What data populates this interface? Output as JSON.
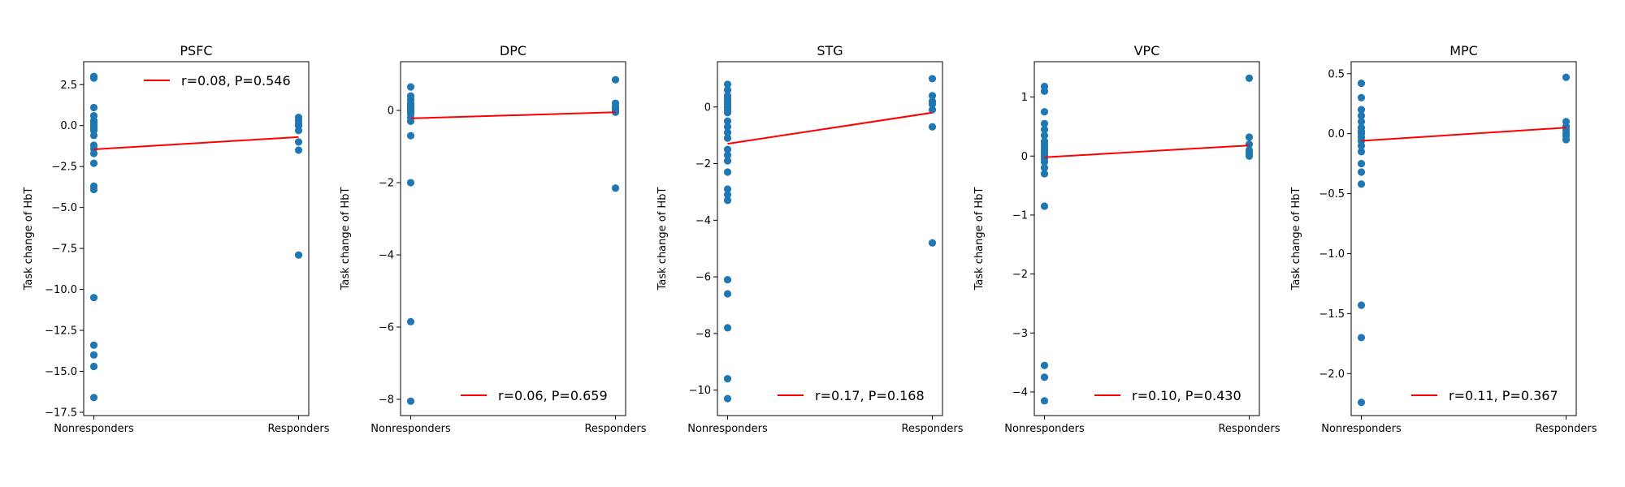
{
  "colors": {
    "points": "#1f77b4",
    "fit_line": "#ff0000",
    "axes": "#000000"
  },
  "chart_data": [
    {
      "type": "scatter",
      "title": "PSFC",
      "xlabel": "",
      "ylabel": "Task change of HbT",
      "categories": [
        "Nonresponders",
        "Responders"
      ],
      "ylim": [
        -17.7,
        3.9
      ],
      "yticks": [
        2.5,
        0.0,
        -2.5,
        -5.0,
        -7.5,
        -10.0,
        -12.5,
        -15.0,
        -17.5
      ],
      "ytick_labels": [
        "2.5",
        "0.0",
        "−2.5",
        "−5.0",
        "−7.5",
        "−10.0",
        "−12.5",
        "−15.0",
        "−17.5"
      ],
      "legend": {
        "label": "r=0.08, P=0.546",
        "position": "upper right"
      },
      "fit_line": {
        "y_start": -1.45,
        "y_end": -0.7
      },
      "series": [
        {
          "category": "Nonresponders",
          "values": [
            3.0,
            2.9,
            1.1,
            0.6,
            0.3,
            0.2,
            0.1,
            0.0,
            -0.1,
            -0.2,
            -0.3,
            -0.6,
            -1.2,
            -1.4,
            -1.7,
            -2.3,
            -3.7,
            -3.9,
            -10.5,
            -13.4,
            -14.0,
            -14.7,
            -16.6
          ]
        },
        {
          "category": "Responders",
          "values": [
            0.5,
            0.3,
            0.1,
            0.0,
            -0.3,
            -1.0,
            -1.5,
            -7.9
          ]
        }
      ]
    },
    {
      "type": "scatter",
      "title": "DPC",
      "xlabel": "",
      "ylabel": "Task change of HbT",
      "categories": [
        "Nonresponders",
        "Responders"
      ],
      "ylim": [
        -8.45,
        1.35
      ],
      "yticks": [
        0,
        -2,
        -4,
        -6,
        -8
      ],
      "ytick_labels": [
        "0",
        "−2",
        "−4",
        "−6",
        "−8"
      ],
      "legend": {
        "label": "r=0.06, P=0.659",
        "position": "lower right"
      },
      "fit_line": {
        "y_start": -0.22,
        "y_end": -0.05
      },
      "series": [
        {
          "category": "Nonresponders",
          "values": [
            0.65,
            0.4,
            0.3,
            0.2,
            0.15,
            0.1,
            0.05,
            0.0,
            -0.05,
            -0.1,
            -0.2,
            -0.3,
            -0.7,
            -2.0,
            -5.85,
            -8.05
          ]
        },
        {
          "category": "Responders",
          "values": [
            0.85,
            0.2,
            0.1,
            0.05,
            0.0,
            -0.05,
            -2.15
          ]
        }
      ]
    },
    {
      "type": "scatter",
      "title": "STG",
      "xlabel": "",
      "ylabel": "Task change of HbT",
      "categories": [
        "Nonresponders",
        "Responders"
      ],
      "ylim": [
        -10.9,
        1.6
      ],
      "yticks": [
        0,
        -2,
        -4,
        -6,
        -8,
        -10
      ],
      "ytick_labels": [
        "0",
        "−2",
        "−4",
        "−6",
        "−8",
        "−10"
      ],
      "legend": {
        "label": "r=0.17, P=0.168",
        "position": "lower right"
      },
      "fit_line": {
        "y_start": -1.3,
        "y_end": -0.2
      },
      "series": [
        {
          "category": "Nonresponders",
          "values": [
            0.8,
            0.6,
            0.4,
            0.3,
            0.2,
            0.1,
            0.0,
            -0.1,
            -0.2,
            -0.5,
            -0.7,
            -0.9,
            -1.1,
            -1.5,
            -1.7,
            -1.9,
            -2.3,
            -2.9,
            -3.1,
            -3.3,
            -6.1,
            -6.6,
            -7.8,
            -9.6,
            -10.3
          ]
        },
        {
          "category": "Responders",
          "values": [
            1.0,
            0.4,
            0.2,
            0.1,
            -0.1,
            -0.7,
            -4.8
          ]
        }
      ]
    },
    {
      "type": "scatter",
      "title": "VPC",
      "xlabel": "",
      "ylabel": "Task change of HbT",
      "categories": [
        "Nonresponders",
        "Responders"
      ],
      "ylim": [
        -4.4,
        1.6
      ],
      "yticks": [
        1,
        0,
        -1,
        -2,
        -3,
        -4
      ],
      "ytick_labels": [
        "1",
        "0",
        "−1",
        "−2",
        "−3",
        "−4"
      ],
      "legend": {
        "label": "r=0.10, P=0.430",
        "position": "lower right"
      },
      "fit_line": {
        "y_start": -0.02,
        "y_end": 0.18
      },
      "series": [
        {
          "category": "Nonresponders",
          "values": [
            1.18,
            1.1,
            0.75,
            0.55,
            0.45,
            0.35,
            0.25,
            0.2,
            0.15,
            0.1,
            0.05,
            0.0,
            -0.05,
            -0.1,
            -0.2,
            -0.3,
            -0.85,
            -3.55,
            -3.75,
            -4.15
          ]
        },
        {
          "category": "Responders",
          "values": [
            1.32,
            0.32,
            0.2,
            0.1,
            0.05,
            0.0
          ]
        }
      ]
    },
    {
      "type": "scatter",
      "title": "MPC",
      "xlabel": "",
      "ylabel": "Task change of HbT",
      "categories": [
        "Nonresponders",
        "Responders"
      ],
      "ylim": [
        -2.35,
        0.6
      ],
      "yticks": [
        0.5,
        0.0,
        -0.5,
        -1.0,
        -1.5,
        -2.0
      ],
      "ytick_labels": [
        "0.5",
        "0.0",
        "−0.5",
        "−1.0",
        "−1.5",
        "−2.0"
      ],
      "legend": {
        "label": "r=0.11, P=0.367",
        "position": "lower right"
      },
      "fit_line": {
        "y_start": -0.06,
        "y_end": 0.05
      },
      "series": [
        {
          "category": "Nonresponders",
          "values": [
            0.42,
            0.3,
            0.2,
            0.15,
            0.1,
            0.05,
            0.02,
            0.0,
            -0.03,
            -0.06,
            -0.1,
            -0.15,
            -0.25,
            -0.32,
            -0.42,
            -1.43,
            -1.7,
            -2.24
          ]
        },
        {
          "category": "Responders",
          "values": [
            0.47,
            0.1,
            0.06,
            0.03,
            0.0,
            -0.02,
            -0.05
          ]
        }
      ]
    }
  ]
}
